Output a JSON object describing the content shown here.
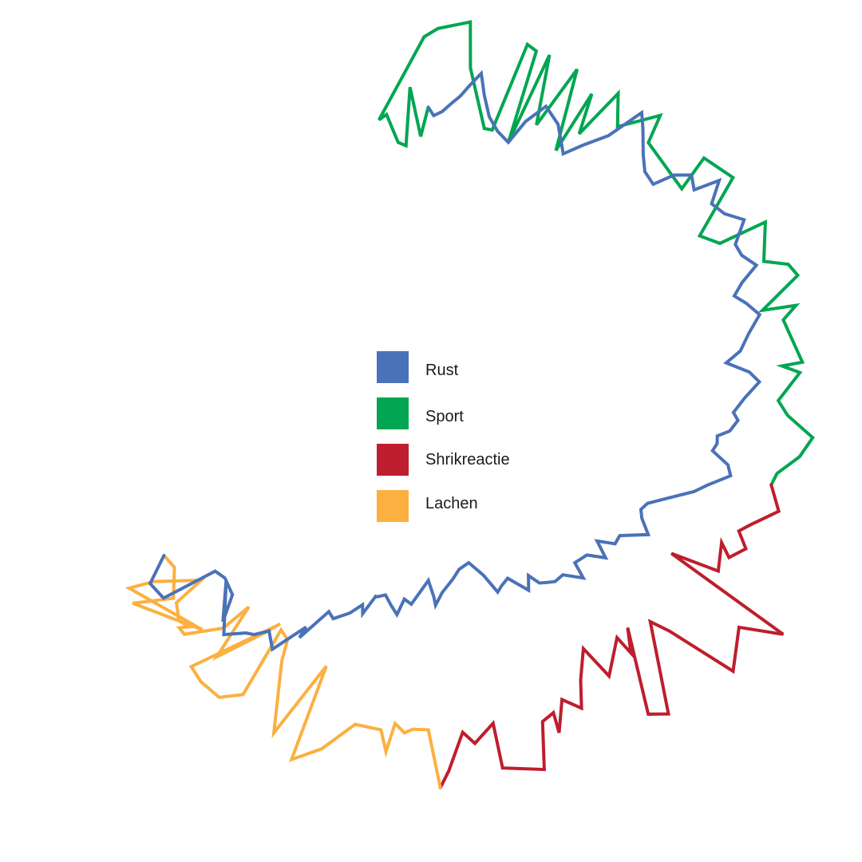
{
  "chart_data": {
    "type": "radial-line",
    "title": "",
    "legend_position": "center",
    "grid": false,
    "legend": [
      {
        "label": "Rust",
        "color": "#4a72b8",
        "series": "rust"
      },
      {
        "label": "Sport",
        "color": "#00a651",
        "series": "sport"
      },
      {
        "label": "Shrikreactie",
        "color": "#be1e2d",
        "series": "shrik"
      },
      {
        "label": "Lachen",
        "color": "#fbb040",
        "series": "lachen"
      }
    ],
    "series": [
      {
        "key": "sport",
        "color": "#00a651",
        "points": [
          [
            -0.5,
            0.78
          ],
          [
            -2.0,
            0.71
          ],
          [
            -3.5,
            0.83
          ],
          [
            -5.0,
            0.69
          ],
          [
            -6.5,
            0.7
          ],
          [
            -8.0,
            0.77
          ],
          [
            -9.5,
            0.76
          ],
          [
            -1.0,
            0.95
          ],
          [
            1.0,
            0.97
          ],
          [
            5.5,
            0.99
          ],
          [
            6.2,
            0.88
          ],
          [
            10.0,
            0.74
          ],
          [
            11.5,
            0.74
          ],
          [
            14.0,
            0.96
          ],
          [
            15.5,
            0.95
          ],
          [
            15.0,
            0.72
          ],
          [
            17.5,
            0.95
          ],
          [
            19.0,
            0.78
          ],
          [
            22.0,
            0.94
          ],
          [
            24.0,
            0.74
          ],
          [
            25.5,
            0.9
          ],
          [
            26.5,
            0.8
          ],
          [
            29.0,
            0.93
          ],
          [
            31.5,
            0.86
          ],
          [
            36.0,
            0.94
          ],
          [
            37.0,
            0.87
          ],
          [
            46.0,
            0.84
          ],
          [
            45.0,
            0.93
          ],
          [
            50.0,
            0.95
          ],
          [
            54.0,
            0.8
          ],
          [
            57.0,
            0.83
          ],
          [
            58.0,
            0.95
          ],
          [
            63.0,
            0.9
          ],
          [
            65.0,
            0.95
          ],
          [
            67.0,
            0.96
          ],
          [
            70.0,
            0.85
          ],
          [
            71.0,
            0.93
          ],
          [
            72.5,
            0.89
          ],
          [
            79.5,
            0.91
          ],
          [
            79.5,
            0.86
          ],
          [
            81.0,
            0.9
          ],
          [
            85.0,
            0.84
          ],
          [
            87.5,
            0.86
          ],
          [
            91.0,
            0.92
          ],
          [
            94.0,
            0.89
          ],
          [
            97.0,
            0.84
          ],
          [
            99.0,
            0.83
          ]
        ]
      },
      {
        "key": "shrik",
        "color": "#be1e2d",
        "points": [
          [
            99.0,
            0.83
          ],
          [
            103.0,
            0.86
          ],
          [
            106.5,
            0.8
          ],
          [
            108.0,
            0.78
          ],
          [
            110.5,
            0.81
          ],
          [
            113.0,
            0.78
          ],
          [
            111.0,
            0.75
          ],
          [
            116.0,
            0.77
          ],
          [
            117.0,
            0.65
          ],
          [
            120.0,
            0.98
          ],
          [
            122.5,
            0.88
          ],
          [
            128.5,
            0.93
          ],
          [
            130.0,
            0.75
          ],
          [
            131.0,
            0.7
          ],
          [
            140.0,
            0.89
          ],
          [
            142.5,
            0.86
          ],
          [
            135.0,
            0.67
          ],
          [
            138.0,
            0.72
          ],
          [
            138.0,
            0.67
          ],
          [
            144.0,
            0.73
          ],
          [
            145.0,
            0.64
          ],
          [
            149.0,
            0.7
          ],
          [
            151.5,
            0.76
          ],
          [
            154.0,
            0.72
          ],
          [
            157.0,
            0.79
          ],
          [
            156.5,
            0.74
          ],
          [
            159.0,
            0.75
          ],
          [
            161.5,
            0.86
          ],
          [
            168.0,
            0.83
          ],
          [
            168.0,
            0.72
          ],
          [
            172.0,
            0.76
          ],
          [
            174.0,
            0.73
          ],
          [
            177.0,
            0.82
          ],
          [
            178.5,
            0.86
          ]
        ]
      },
      {
        "key": "lachen",
        "color": "#fbb040",
        "points": [
          [
            178.5,
            0.86
          ],
          [
            180.5,
            0.72
          ],
          [
            183.5,
            0.72
          ],
          [
            185.0,
            0.73
          ],
          [
            187.0,
            0.71
          ],
          [
            188.0,
            0.78
          ],
          [
            189.5,
            0.73
          ],
          [
            194.5,
            0.73
          ],
          [
            199.0,
            0.81
          ],
          [
            203.0,
            0.86
          ],
          [
            204.0,
            0.62
          ],
          [
            207.5,
            0.82
          ],
          [
            213.0,
            0.66
          ],
          [
            214.5,
            0.61
          ],
          [
            217.0,
            0.6
          ],
          [
            215.5,
            0.78
          ],
          [
            218.5,
            0.82
          ],
          [
            222.5,
            0.82
          ],
          [
            225.5,
            0.81
          ],
          [
            218.0,
            0.59
          ],
          [
            219.5,
            0.63
          ],
          [
            223.5,
            0.75
          ],
          [
            226.0,
            0.61
          ],
          [
            226.5,
            0.69
          ],
          [
            230.5,
            0.77
          ],
          [
            232.0,
            0.77
          ],
          [
            231.0,
            0.75
          ],
          [
            233.0,
            0.76
          ],
          [
            236.0,
            0.74
          ],
          [
            237.0,
            0.66
          ],
          [
            237.0,
            0.66
          ],
          [
            241.5,
            0.76
          ],
          [
            242.5,
            0.82
          ],
          [
            229.0,
            0.73
          ],
          [
            240.0,
            0.83
          ],
          [
            237.0,
            0.74
          ],
          [
            242.0,
            0.7
          ],
          [
            245.0,
            0.71
          ]
        ]
      },
      {
        "key": "rust",
        "color": "#4a72b8",
        "points": [
          [
            245.0,
            0.71
          ],
          [
            241.5,
            0.77
          ],
          [
            238.0,
            0.76
          ],
          [
            237.0,
            0.62
          ],
          [
            234.5,
            0.61
          ],
          [
            230.5,
            0.62
          ],
          [
            227.5,
            0.68
          ],
          [
            234.0,
            0.61
          ],
          [
            225.5,
            0.7
          ],
          [
            222.5,
            0.66
          ],
          [
            221.0,
            0.65
          ],
          [
            219.0,
            0.62
          ],
          [
            216.0,
            0.65
          ],
          [
            212.5,
            0.56
          ],
          [
            212.5,
            0.59
          ],
          [
            209.5,
            0.5
          ],
          [
            207.5,
            0.51
          ],
          [
            204.0,
            0.48
          ],
          [
            201.5,
            0.45
          ],
          [
            200.5,
            0.47
          ],
          [
            198.5,
            0.42
          ],
          [
            198.0,
            0.42
          ],
          [
            195.5,
            0.41
          ],
          [
            193.0,
            0.43
          ],
          [
            190.5,
            0.45
          ],
          [
            189.0,
            0.41
          ],
          [
            186.5,
            0.42
          ],
          [
            184.0,
            0.39
          ],
          [
            181.0,
            0.36
          ],
          [
            179.0,
            0.4
          ],
          [
            178.5,
            0.42
          ],
          [
            176.0,
            0.39
          ],
          [
            171.5,
            0.36
          ],
          [
            168.5,
            0.34
          ],
          [
            164.0,
            0.33
          ],
          [
            160.0,
            0.37
          ],
          [
            157.5,
            0.42
          ],
          [
            155.5,
            0.41
          ],
          [
            152.5,
            0.4
          ],
          [
            148.5,
            0.45
          ],
          [
            146.0,
            0.42
          ],
          [
            144.5,
            0.45
          ],
          [
            142.5,
            0.46
          ],
          [
            140.5,
            0.47
          ],
          [
            137.5,
            0.47
          ],
          [
            134.0,
            0.51
          ],
          [
            132.5,
            0.47
          ],
          [
            128.5,
            0.48
          ],
          [
            126.0,
            0.52
          ],
          [
            123.5,
            0.48
          ],
          [
            121.5,
            0.52
          ],
          [
            119.0,
            0.52
          ],
          [
            115.5,
            0.58
          ],
          [
            112.5,
            0.55
          ],
          [
            110.5,
            0.54
          ],
          [
            108.5,
            0.55
          ],
          [
            106.0,
            0.59
          ],
          [
            103.0,
            0.65
          ],
          [
            101.0,
            0.68
          ],
          [
            98.5,
            0.73
          ],
          [
            96.5,
            0.72
          ],
          [
            94.0,
            0.68
          ],
          [
            92.5,
            0.69
          ],
          [
            91.0,
            0.69
          ],
          [
            90.0,
            0.72
          ],
          [
            88.0,
            0.74
          ],
          [
            86.5,
            0.73
          ],
          [
            84.0,
            0.76
          ],
          [
            81.5,
            0.8
          ],
          [
            79.5,
            0.78
          ],
          [
            77.0,
            0.73
          ],
          [
            75.5,
            0.77
          ],
          [
            73.0,
            0.8
          ],
          [
            70.5,
            0.84
          ],
          [
            68.0,
            0.82
          ],
          [
            66.0,
            0.8
          ],
          [
            64.5,
            0.83
          ],
          [
            63.0,
            0.88
          ],
          [
            60.5,
            0.86
          ],
          [
            58.5,
            0.86
          ],
          [
            56.0,
            0.91
          ],
          [
            53.5,
            0.88
          ],
          [
            51.0,
            0.87
          ],
          [
            49.0,
            0.92
          ],
          [
            47.5,
            0.86
          ],
          [
            45.5,
            0.88
          ],
          [
            43.5,
            0.85
          ],
          [
            42.0,
            0.8
          ],
          [
            39.5,
            0.81
          ],
          [
            37.5,
            0.84
          ],
          [
            35.0,
            0.89
          ],
          [
            33.5,
            0.92
          ],
          [
            31.0,
            0.83
          ],
          [
            28.0,
            0.78
          ],
          [
            25.5,
            0.74
          ],
          [
            22.5,
            0.8
          ],
          [
            19.5,
            0.83
          ],
          [
            17.0,
            0.78
          ],
          [
            15.0,
            0.72
          ],
          [
            12.5,
            0.74
          ],
          [
            10.5,
            0.77
          ],
          [
            9.0,
            0.82
          ],
          [
            8.0,
            0.87
          ],
          [
            6.5,
            0.84
          ],
          [
            5.0,
            0.81
          ],
          [
            3.5,
            0.79
          ],
          [
            2.0,
            0.77
          ],
          [
            0.5,
            0.76
          ],
          [
            -0.5,
            0.78
          ]
        ]
      }
    ]
  }
}
